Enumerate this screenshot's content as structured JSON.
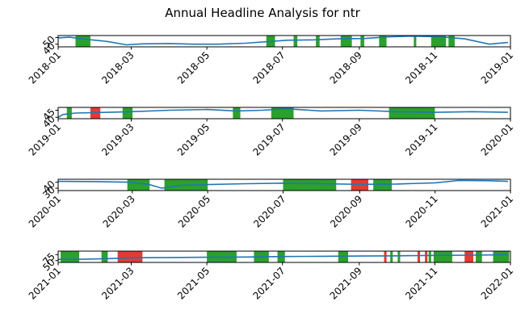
{
  "title": "Annual Headline Analysis for ntr",
  "colors": {
    "line": "#1f77b4",
    "positive": "#2ca02c",
    "negative": "#e53935",
    "axis": "#000000"
  },
  "chart_data": [
    {
      "type": "line",
      "year": 2018,
      "ylim": [
        36,
        53
      ],
      "yticks": [
        40,
        50
      ],
      "xtick_labels": [
        "2018-01",
        "2018-03",
        "2018-05",
        "2018-07",
        "2018-09",
        "2018-11",
        "2019-01"
      ],
      "series_points": [
        [
          "2018-01-01",
          49.5
        ],
        [
          "2018-01-10",
          50.5
        ],
        [
          "2018-01-25",
          47
        ],
        [
          "2018-02-10",
          44
        ],
        [
          "2018-02-25",
          39
        ],
        [
          "2018-03-10",
          40.5
        ],
        [
          "2018-04-01",
          41
        ],
        [
          "2018-04-20",
          40
        ],
        [
          "2018-05-10",
          40
        ],
        [
          "2018-06-01",
          41.5
        ],
        [
          "2018-06-20",
          44
        ],
        [
          "2018-07-05",
          46
        ],
        [
          "2018-07-25",
          46.5
        ],
        [
          "2018-08-15",
          48
        ],
        [
          "2018-09-05",
          48.5
        ],
        [
          "2018-09-25",
          51
        ],
        [
          "2018-10-15",
          52
        ],
        [
          "2018-11-05",
          51
        ],
        [
          "2018-11-25",
          48
        ],
        [
          "2018-12-15",
          40
        ],
        [
          "2018-12-30",
          42.5
        ]
      ],
      "bands": [
        {
          "start": "2018-01-15",
          "end": "2018-01-27",
          "sentiment": "positive"
        },
        {
          "start": "2018-06-18",
          "end": "2018-06-25",
          "sentiment": "positive"
        },
        {
          "start": "2018-07-10",
          "end": "2018-07-13",
          "sentiment": "positive"
        },
        {
          "start": "2018-07-28",
          "end": "2018-07-31",
          "sentiment": "positive"
        },
        {
          "start": "2018-08-17",
          "end": "2018-08-26",
          "sentiment": "positive"
        },
        {
          "start": "2018-09-02",
          "end": "2018-09-05",
          "sentiment": "positive"
        },
        {
          "start": "2018-09-17",
          "end": "2018-09-23",
          "sentiment": "positive"
        },
        {
          "start": "2018-10-15",
          "end": "2018-10-17",
          "sentiment": "positive"
        },
        {
          "start": "2018-10-29",
          "end": "2018-11-10",
          "sentiment": "positive"
        },
        {
          "start": "2018-11-12",
          "end": "2018-11-17",
          "sentiment": "positive"
        }
      ]
    },
    {
      "type": "line",
      "year": 2019,
      "ylim": [
        39,
        47
      ],
      "yticks": [
        40,
        45
      ],
      "xtick_labels": [
        "2019-01",
        "2019-03",
        "2019-05",
        "2019-07",
        "2019-09",
        "2019-11",
        "2020-01"
      ],
      "series_points": [
        [
          "2019-01-01",
          40
        ],
        [
          "2019-01-05",
          42
        ],
        [
          "2019-01-15",
          43
        ],
        [
          "2019-02-10",
          43.5
        ],
        [
          "2019-03-01",
          44
        ],
        [
          "2019-04-01",
          45
        ],
        [
          "2019-05-01",
          45.5
        ],
        [
          "2019-05-25",
          44.5
        ],
        [
          "2019-06-15",
          45
        ],
        [
          "2019-07-05",
          46
        ],
        [
          "2019-08-01",
          44.5
        ],
        [
          "2019-09-01",
          45
        ],
        [
          "2019-10-01",
          44
        ],
        [
          "2019-11-01",
          43.5
        ],
        [
          "2019-12-01",
          44
        ],
        [
          "2019-12-30",
          43.5
        ]
      ],
      "bands": [
        {
          "start": "2019-01-08",
          "end": "2019-01-12",
          "sentiment": "positive"
        },
        {
          "start": "2019-01-27",
          "end": "2019-02-04",
          "sentiment": "negative"
        },
        {
          "start": "2019-02-22",
          "end": "2019-03-02",
          "sentiment": "positive"
        },
        {
          "start": "2019-05-22",
          "end": "2019-05-28",
          "sentiment": "positive"
        },
        {
          "start": "2019-06-22",
          "end": "2019-07-10",
          "sentiment": "positive"
        },
        {
          "start": "2019-09-25",
          "end": "2019-11-01",
          "sentiment": "positive"
        }
      ]
    },
    {
      "type": "line",
      "year": 2020,
      "ylim": [
        26,
        45
      ],
      "yticks": [
        30,
        40
      ],
      "xtick_labels": [
        "2020-01",
        "2020-03",
        "2020-05",
        "2020-07",
        "2020-09",
        "2020-11",
        "2021-01"
      ],
      "series_points": [
        [
          "2020-01-01",
          41.5
        ],
        [
          "2020-02-01",
          41
        ],
        [
          "2020-03-01",
          40
        ],
        [
          "2020-03-15",
          36
        ],
        [
          "2020-03-25",
          30
        ],
        [
          "2020-04-10",
          35
        ],
        [
          "2020-05-01",
          36
        ],
        [
          "2020-06-01",
          37.5
        ],
        [
          "2020-07-01",
          38.5
        ],
        [
          "2020-08-01",
          37.5
        ],
        [
          "2020-09-01",
          36.5
        ],
        [
          "2020-10-01",
          37
        ],
        [
          "2020-11-01",
          39
        ],
        [
          "2020-11-20",
          43
        ],
        [
          "2020-12-15",
          42.5
        ],
        [
          "2020-12-30",
          41.5
        ]
      ],
      "bands": [
        {
          "start": "2020-02-26",
          "end": "2020-03-15",
          "sentiment": "positive"
        },
        {
          "start": "2020-03-27",
          "end": "2020-05-01",
          "sentiment": "positive"
        },
        {
          "start": "2020-07-01",
          "end": "2020-08-13",
          "sentiment": "positive"
        },
        {
          "start": "2020-08-25",
          "end": "2020-09-08",
          "sentiment": "negative"
        },
        {
          "start": "2020-09-12",
          "end": "2020-09-27",
          "sentiment": "positive"
        }
      ]
    },
    {
      "type": "line",
      "year": 2021,
      "ylim": [
        42,
        90
      ],
      "yticks": [
        50,
        75
      ],
      "xtick_labels": [
        "2021-01",
        "2021-03",
        "2021-05",
        "2021-07",
        "2021-09",
        "2021-11",
        "2022-01"
      ],
      "series_points": [
        [
          "2021-01-01",
          55
        ],
        [
          "2021-01-20",
          55.5
        ],
        [
          "2021-02-10",
          58
        ],
        [
          "2021-03-01",
          62
        ],
        [
          "2021-04-01",
          63
        ],
        [
          "2021-05-01",
          64
        ],
        [
          "2021-06-01",
          65
        ],
        [
          "2021-07-01",
          67
        ],
        [
          "2021-08-01",
          68
        ],
        [
          "2021-09-01",
          69
        ],
        [
          "2021-10-01",
          70
        ],
        [
          "2021-11-01",
          72
        ],
        [
          "2021-12-01",
          73
        ],
        [
          "2021-12-30",
          75
        ]
      ],
      "bands": [
        {
          "start": "2021-01-03",
          "end": "2021-01-18",
          "sentiment": "positive"
        },
        {
          "start": "2021-02-05",
          "end": "2021-02-10",
          "sentiment": "positive"
        },
        {
          "start": "2021-02-18",
          "end": "2021-03-10",
          "sentiment": "negative"
        },
        {
          "start": "2021-05-01",
          "end": "2021-05-25",
          "sentiment": "positive"
        },
        {
          "start": "2021-06-08",
          "end": "2021-06-20",
          "sentiment": "positive"
        },
        {
          "start": "2021-06-27",
          "end": "2021-07-03",
          "sentiment": "positive"
        },
        {
          "start": "2021-08-15",
          "end": "2021-08-23",
          "sentiment": "positive"
        },
        {
          "start": "2021-09-21",
          "end": "2021-09-23",
          "sentiment": "negative"
        },
        {
          "start": "2021-09-26",
          "end": "2021-09-28",
          "sentiment": "positive"
        },
        {
          "start": "2021-10-02",
          "end": "2021-10-04",
          "sentiment": "positive"
        },
        {
          "start": "2021-10-18",
          "end": "2021-10-20",
          "sentiment": "negative"
        },
        {
          "start": "2021-10-24",
          "end": "2021-10-26",
          "sentiment": "negative"
        },
        {
          "start": "2021-10-27",
          "end": "2021-10-29",
          "sentiment": "positive"
        },
        {
          "start": "2021-10-31",
          "end": "2021-11-15",
          "sentiment": "positive"
        },
        {
          "start": "2021-11-25",
          "end": "2021-12-02",
          "sentiment": "negative"
        },
        {
          "start": "2021-12-04",
          "end": "2021-12-09",
          "sentiment": "positive"
        },
        {
          "start": "2021-12-18",
          "end": "2021-12-31",
          "sentiment": "positive"
        }
      ]
    }
  ]
}
